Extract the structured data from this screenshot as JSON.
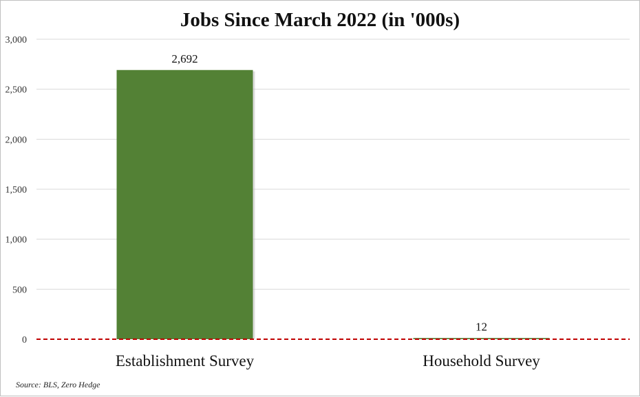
{
  "chart_data": {
    "type": "bar",
    "title": "Jobs Since March 2022 (in '000s)",
    "categories": [
      "Establishment Survey",
      "Household Survey"
    ],
    "values": [
      2692,
      12
    ],
    "data_labels": [
      "2,692",
      "12"
    ],
    "ylim": [
      0,
      3000
    ],
    "yticks": [
      0,
      500,
      1000,
      1500,
      2000,
      2500,
      3000
    ],
    "ytick_labels": [
      "0",
      "500",
      "1,000",
      "1,500",
      "2,000",
      "2,500",
      "3,000"
    ],
    "xlabel": "",
    "ylabel": "",
    "grid": true,
    "zero_line": "dashed red",
    "colors": {
      "bar": "#538135",
      "grid": "#d9d9d9",
      "zero_line": "#c00000"
    }
  },
  "source": "Source: BLS, Zero Hedge"
}
